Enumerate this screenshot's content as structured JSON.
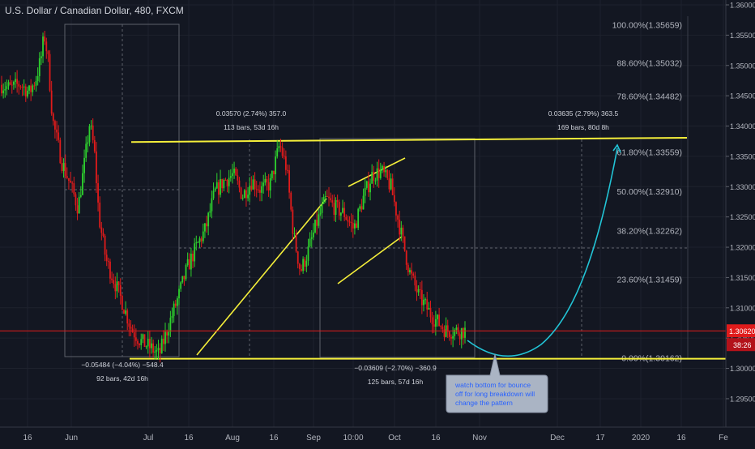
{
  "header": {
    "symbol_title": "U.S. Dollar / Canadian Dollar, 480, FXCM"
  },
  "colors": {
    "background": "#131722",
    "grid": "#1e222d",
    "axis_text": "#b2b5be",
    "candle_up": "#2ed12e",
    "candle_down": "#e01b1b",
    "trendline": "#f5ef3a",
    "fib": "#9598a1",
    "price_line": "#e01b1b",
    "projection_curve": "#22c4d6",
    "note_bg": "#aab4c4",
    "note_text": "#2962ff"
  },
  "chart_data": {
    "type": "candlestick",
    "symbol": "USDCAD",
    "timeframe": "480",
    "source": "FXCM",
    "y_axis": {
      "ylim": [
        1.2925,
        1.3605
      ],
      "ticks": [
        1.36,
        1.355,
        1.35,
        1.345,
        1.34,
        1.335,
        1.33,
        1.325,
        1.32,
        1.315,
        1.31,
        1.305,
        1.3,
        1.295
      ],
      "tick_labels": [
        "1.36000",
        "1.35500",
        "1.35000",
        "1.34500",
        "1.34000",
        "1.33500",
        "1.33000",
        "1.32500",
        "1.32000",
        "1.31500",
        "1.31000",
        "1.30500",
        "1.30000",
        "1.29500"
      ]
    },
    "x_axis": {
      "tick_labels": [
        "16",
        "Jun",
        "Jul",
        "16",
        "Aug",
        "16",
        "Sep",
        "10:00",
        "Oct",
        "16",
        "Nov",
        "Dec",
        "17",
        "2020",
        "16",
        "Fe"
      ]
    },
    "current_price": {
      "value": 1.3062,
      "label": "1.30620",
      "countdown": "38:26"
    },
    "close_path": [
      [
        0,
        1.3468
      ],
      [
        0.02,
        1.3462
      ],
      [
        0.04,
        1.347
      ],
      [
        0.06,
        1.3455
      ],
      [
        0.075,
        1.348
      ],
      [
        0.085,
        1.3512
      ],
      [
        0.092,
        1.3551
      ],
      [
        0.1,
        1.3512
      ],
      [
        0.11,
        1.341
      ],
      [
        0.13,
        1.334
      ],
      [
        0.15,
        1.33
      ],
      [
        0.165,
        1.3265
      ],
      [
        0.18,
        1.3345
      ],
      [
        0.19,
        1.3405
      ],
      [
        0.2,
        1.336
      ],
      [
        0.21,
        1.325
      ],
      [
        0.225,
        1.318
      ],
      [
        0.24,
        1.315
      ],
      [
        0.26,
        1.311
      ],
      [
        0.28,
        1.3065
      ],
      [
        0.3,
        1.3045
      ],
      [
        0.32,
        1.3035
      ],
      [
        0.34,
        1.3022
      ],
      [
        0.36,
        1.307
      ],
      [
        0.38,
        1.3115
      ],
      [
        0.4,
        1.3165
      ],
      [
        0.42,
        1.32
      ],
      [
        0.44,
        1.323
      ],
      [
        0.46,
        1.329
      ],
      [
        0.48,
        1.331
      ],
      [
        0.5,
        1.332
      ],
      [
        0.52,
        1.3285
      ],
      [
        0.54,
        1.331
      ],
      [
        0.56,
        1.3295
      ],
      [
        0.58,
        1.3305
      ],
      [
        0.6,
        1.337
      ],
      [
        0.615,
        1.333
      ],
      [
        0.63,
        1.322
      ],
      [
        0.645,
        1.316
      ],
      [
        0.66,
        1.319
      ],
      [
        0.68,
        1.324
      ],
      [
        0.7,
        1.328
      ],
      [
        0.72,
        1.3265
      ],
      [
        0.74,
        1.3255
      ],
      [
        0.76,
        1.323
      ],
      [
        0.78,
        1.328
      ],
      [
        0.8,
        1.332
      ],
      [
        0.82,
        1.3325
      ],
      [
        0.84,
        1.33
      ],
      [
        0.86,
        1.323
      ],
      [
        0.88,
        1.316
      ],
      [
        0.9,
        1.312
      ],
      [
        0.93,
        1.3085
      ],
      [
        0.96,
        1.3062
      ]
    ],
    "x_range_days": {
      "start": "May 10",
      "end": "Oct 25"
    },
    "support_level": 1.3016,
    "resistance_level": 1.3375,
    "fibonacci": [
      {
        "level": "100.00%",
        "price": 1.35659,
        "label": "100.00%(1.35659)"
      },
      {
        "level": "88.60%",
        "price": 1.35032,
        "label": "88.60%(1.35032)"
      },
      {
        "level": "78.60%",
        "price": 1.34482,
        "label": "78.60%(1.34482)"
      },
      {
        "level": "61.80%",
        "price": 1.33559,
        "label": "61.80%(1.33559)"
      },
      {
        "level": "50.00%",
        "price": 1.3291,
        "label": "50.00%(1.32910)"
      },
      {
        "level": "38.20%",
        "price": 1.32262,
        "label": "38.20%(1.32262)"
      },
      {
        "level": "23.60%",
        "price": 1.31459,
        "label": "23.60%(1.31459)"
      },
      {
        "level": "0.00%",
        "price": 1.30162,
        "label": "0.00%(1.30162)"
      }
    ],
    "measurements": [
      {
        "line1": "0.03570 (2.74%) 357.0",
        "line2": "113 bars, 53d 16h"
      },
      {
        "line1": "0.03635 (2.79%) 363.5",
        "line2": "169 bars, 80d 8h"
      },
      {
        "line1": "−0.05484 (−4.04%) −548.4",
        "line2": "92 bars, 42d 16h"
      },
      {
        "line1": "−0.03609 (−2.70%) −360.9",
        "line2": "125 bars, 57d 16h"
      }
    ],
    "annotation": {
      "lines": [
        "watch bottom for bounce",
        "off for long breakdown will",
        "change the pattern"
      ]
    }
  }
}
